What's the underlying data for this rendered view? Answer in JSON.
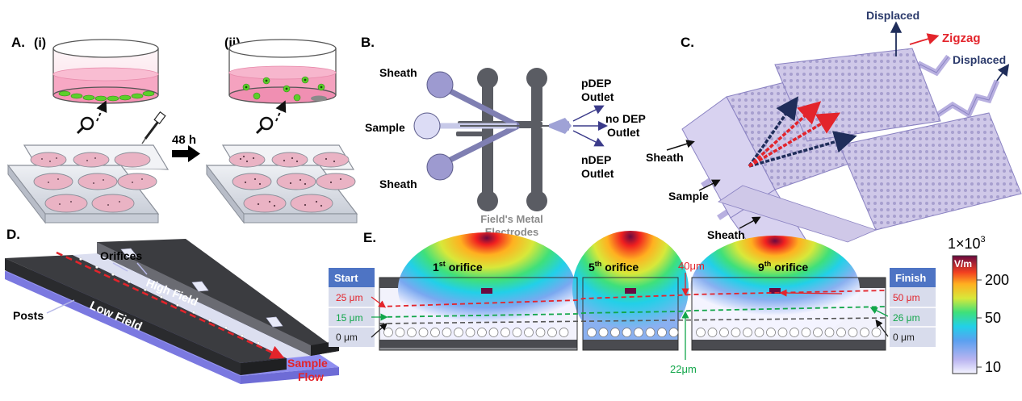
{
  "panel_a": {
    "label": "A.",
    "sub_i": "(i)",
    "sub_ii": "(ii)",
    "time": "48 h"
  },
  "panel_b": {
    "label": "B.",
    "sheath_top": "Sheath",
    "sample": "Sample",
    "sheath_bottom": "Sheath",
    "pdep_1": "pDEP",
    "pdep_2": "Outlet",
    "nodep_1": "no DEP",
    "nodep_2": "Outlet",
    "ndep_1": "nDEP",
    "ndep_2": "Outlet",
    "electrodes_1": "Field's Metal",
    "electrodes_2": "Electrodes"
  },
  "panel_c": {
    "label": "C.",
    "displaced_top": "Displaced",
    "zigzag": "Zigzag",
    "displaced_right": "Displaced",
    "sheath_top": "Sheath",
    "sample": "Sample",
    "sheath_bottom": "Sheath"
  },
  "panel_d": {
    "label": "D.",
    "orifices": "Orifices",
    "high_field": "High Field",
    "posts": "Posts",
    "low_field": "Low Field",
    "sample_flow_1": "Sample",
    "sample_flow_2": "Flow"
  },
  "panel_e": {
    "label": "E.",
    "start": "Start",
    "finish": "Finish",
    "orifice_1": "1",
    "orifice_1_sup": "st",
    "orifice_5": "5",
    "orifice_5_sup": "th",
    "orifice_9": "9",
    "orifice_9_sup": "th",
    "orifice_word": "orifice",
    "left_25": "25 μm",
    "left_15": "15 μm",
    "left_0": "0 μm",
    "right_50": "50 μm",
    "right_26": "26 μm",
    "right_0": "0 μm",
    "top_40": "40μm",
    "bottom_22": "22μm"
  },
  "colorbar": {
    "multiplier": "1×10",
    "multiplier_exp": "3",
    "unit": "V/m",
    "ticks": [
      "200",
      "50",
      "10"
    ]
  }
}
